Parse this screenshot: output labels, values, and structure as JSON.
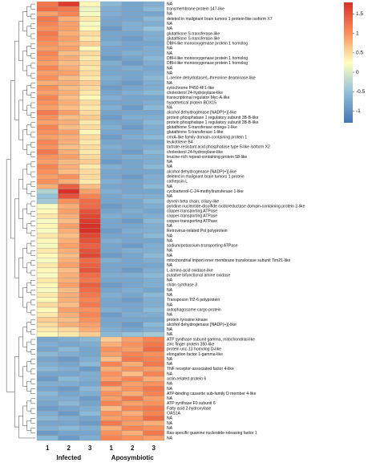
{
  "chart_data": {
    "type": "heatmap",
    "columns": [
      "1",
      "2",
      "3",
      "1",
      "2",
      "3"
    ],
    "column_groups": [
      {
        "label": "Infected",
        "columns": [
          0,
          1,
          2
        ]
      },
      {
        "label": "Aposymbiotic",
        "columns": [
          3,
          4,
          5
        ]
      }
    ],
    "rows": [
      "NA",
      "transmembrane protein 147-like",
      "NA",
      "deleted in malignant brain tumors 1 protein-like isoform X7",
      "NA",
      "NA",
      "glutathione S-transferase-like",
      "glutathione S-transferase-like",
      "DBH-like monooxygenase protein 1 homolog",
      "NA",
      "NA",
      "DBH-like monooxygenase protein 1 homolog",
      "DBH-like monooxygenase protein 1 homolog",
      "NA",
      "NA",
      "L-serine dehydratase/L-threonine deaminase-like",
      "NA",
      "cytochrome P450 4F1-like",
      "cholesterol 24-hydroxylase-like",
      "transcriptional regulator Myc-A-like",
      "hypothetical protein BOX15",
      "NA",
      "alcohol dehydrogenase [NADP(+)]-like",
      "protein phosphatase 1 regulatory subunit 3B-B-like",
      "protein phosphatase 1 regulatory subunit 3B-B-like",
      "glutathione S-transferase omega-1-like",
      "glutathione S-transferase 1-like",
      "cmrA-like family domain-containing protein 1",
      "leukotriene B4",
      "tartrate-resistant acid phosphatase type 5-like isoform X2",
      "cholesterol 24-hydroxylase-like",
      "leucine-rich repeat-containing protein 58-like",
      "NA",
      "NA",
      "alcohol dehydrogenase [NADP(+)]-like",
      "deleted in malignant brain tumors 1 protein",
      "cathepsin L",
      "NA",
      "cycloartenol-C-24-methyltransferase 1-like",
      "NA",
      "dynein beta chain, ciliary-like",
      "pyridine nucleotide-disulfide oxidoreductase domain-containing protein 2-like",
      "copper-transporting ATPase",
      "copper-transporting ATPase",
      "copper-transporting ATPase",
      "NA",
      "Retrovirus-related Pol polyprotein",
      "NA",
      "NA",
      "sodium/potassium-transporting ATPase",
      "NA",
      "NA",
      "mitochondrial import inner membrane translocase subunit Tim21-like",
      "NA",
      "L-amino-acid oxidase-like",
      "putative bifunctional amine oxidase",
      "NA",
      "chitin synthase 3",
      "NA",
      "NA",
      "Transposon Tf2-6 polyprotein",
      "NA",
      "autophagosome cargo protein",
      "NA",
      "protein tyrosine kinase",
      "alcohol dehydrogenase [NADP(+)]-like",
      "NA",
      "NA",
      "ATP synthase subunit gamma, mitochondrial-like",
      "zinc finger protein 350-like",
      "protein unc-13 homolog D-like",
      "elongation factor 1-gamma-like",
      "NA",
      "NA",
      "TNF receptor-associated factor 4-like",
      "NA",
      "actin-related protein 6",
      "NA",
      "NA",
      "ATP-binding cassette sub-family D member 4-like",
      "NA",
      "ATP synthase F0 subunit 6",
      "Fatty acid 2-hydroxylase",
      "OAS1A",
      "NA",
      "NA",
      "NA",
      "Ras-specific guanine nucleotide-releasing factor 1",
      "NA"
    ],
    "values": [
      [
        1.2,
        1.7,
        0.3,
        -0.6,
        -0.8,
        -0.7
      ],
      [
        1.3,
        1.2,
        0.1,
        -0.7,
        -0.8,
        -0.6
      ],
      [
        0.9,
        1.1,
        0.2,
        -0.7,
        -0.8,
        -0.8
      ],
      [
        1.2,
        0.8,
        0.4,
        -0.8,
        -0.8,
        -0.6
      ],
      [
        1.1,
        0.9,
        0.2,
        -0.8,
        -0.7,
        -0.7
      ],
      [
        1.0,
        0.9,
        0.3,
        -0.9,
        -0.7,
        -0.5
      ],
      [
        1.2,
        0.8,
        0.5,
        -0.8,
        -0.8,
        -0.7
      ],
      [
        1.1,
        0.9,
        0.4,
        -0.8,
        -0.9,
        -0.7
      ],
      [
        1.0,
        0.8,
        0.6,
        -0.7,
        -0.8,
        -0.8
      ],
      [
        0.9,
        0.9,
        0.3,
        -0.8,
        -0.8,
        -0.7
      ],
      [
        1.1,
        0.7,
        0.5,
        -0.8,
        -0.7,
        -0.7
      ],
      [
        1.0,
        0.8,
        0.4,
        -0.9,
        -0.8,
        -0.6
      ],
      [
        0.9,
        0.7,
        0.5,
        -0.7,
        -0.9,
        -0.7
      ],
      [
        1.1,
        0.8,
        0.4,
        -0.8,
        -0.7,
        -0.8
      ],
      [
        0.9,
        0.9,
        0.5,
        -0.8,
        -0.8,
        -0.7
      ],
      [
        1.0,
        0.7,
        0.4,
        -0.7,
        -0.8,
        -0.6
      ],
      [
        0.8,
        0.8,
        0.6,
        -0.8,
        -0.9,
        -0.7
      ],
      [
        1.0,
        0.7,
        0.5,
        -0.9,
        -0.8,
        -0.7
      ],
      [
        0.9,
        0.8,
        0.4,
        -0.8,
        -0.7,
        -0.6
      ],
      [
        1.1,
        0.7,
        0.3,
        -0.7,
        -0.8,
        -0.8
      ],
      [
        1.0,
        0.8,
        0.5,
        -0.8,
        -0.8,
        -0.7
      ],
      [
        0.9,
        0.7,
        0.4,
        -0.7,
        -0.9,
        -0.6
      ],
      [
        1.2,
        0.9,
        0.5,
        -0.8,
        -0.8,
        -0.8
      ],
      [
        1.0,
        0.7,
        0.6,
        -0.9,
        -0.7,
        -0.7
      ],
      [
        0.9,
        0.8,
        0.4,
        -0.8,
        -0.8,
        -0.6
      ],
      [
        1.1,
        0.7,
        0.5,
        -0.7,
        -0.9,
        -0.7
      ],
      [
        1.0,
        0.9,
        0.3,
        -0.8,
        -0.8,
        -0.7
      ],
      [
        0.9,
        0.8,
        0.5,
        -0.9,
        -0.7,
        -0.6
      ],
      [
        1.1,
        0.8,
        0.4,
        -0.8,
        -0.8,
        -0.8
      ],
      [
        1.0,
        0.7,
        0.5,
        -0.7,
        -0.8,
        -0.7
      ],
      [
        1.2,
        0.8,
        0.4,
        -0.8,
        -0.9,
        -0.6
      ],
      [
        1.0,
        0.9,
        0.5,
        -0.8,
        -0.7,
        -0.7
      ],
      [
        0.9,
        0.7,
        0.6,
        -0.9,
        -0.8,
        -0.7
      ],
      [
        1.1,
        0.8,
        0.4,
        -0.7,
        -0.8,
        -0.6
      ],
      [
        1.0,
        0.7,
        0.5,
        -0.8,
        -0.8,
        -0.8
      ],
      [
        0.9,
        1.0,
        0.5,
        -0.8,
        -0.9,
        -0.7
      ],
      [
        1.0,
        0.8,
        0.4,
        -0.7,
        -0.8,
        -0.7
      ],
      [
        0.8,
        1.4,
        0.7,
        -0.8,
        -0.8,
        -0.6
      ],
      [
        -0.3,
        1.8,
        0.9,
        -0.7,
        -0.8,
        -0.8
      ],
      [
        -0.5,
        1.5,
        1.1,
        -0.8,
        -0.7,
        -0.7
      ],
      [
        -0.4,
        1.0,
        1.3,
        -0.8,
        -0.8,
        -0.6
      ],
      [
        0.2,
        0.8,
        1.3,
        -0.9,
        -0.8,
        -0.7
      ],
      [
        0.3,
        0.9,
        1.5,
        -0.8,
        -0.7,
        -0.8
      ],
      [
        0.4,
        0.8,
        1.6,
        -0.7,
        -0.8,
        -0.7
      ],
      [
        0.2,
        0.7,
        1.7,
        -0.8,
        -0.9,
        -0.6
      ],
      [
        0.3,
        0.9,
        1.8,
        -0.8,
        -0.8,
        -0.7
      ],
      [
        0.2,
        0.8,
        1.9,
        -0.9,
        -0.7,
        -0.7
      ],
      [
        0.4,
        0.7,
        1.6,
        -0.8,
        -0.8,
        -0.6
      ],
      [
        0.3,
        0.8,
        1.5,
        -0.7,
        -0.8,
        -0.8
      ],
      [
        0.2,
        0.9,
        1.4,
        -0.8,
        -0.9,
        -0.7
      ],
      [
        0.4,
        0.8,
        1.5,
        -0.8,
        -0.7,
        -0.7
      ],
      [
        0.3,
        0.7,
        1.6,
        -0.9,
        -0.8,
        -0.6
      ],
      [
        0.2,
        0.8,
        1.3,
        -0.7,
        -0.8,
        -0.7
      ],
      [
        0.4,
        0.9,
        1.4,
        -0.8,
        -0.8,
        -0.8
      ],
      [
        0.3,
        0.7,
        1.5,
        -0.8,
        -0.9,
        -0.7
      ],
      [
        0.2,
        0.8,
        1.3,
        -0.7,
        -0.7,
        -0.6
      ],
      [
        0.4,
        0.8,
        1.2,
        -0.8,
        -0.8,
        -0.7
      ],
      [
        0.3,
        0.9,
        1.4,
        -0.9,
        -0.8,
        -0.7
      ],
      [
        0.2,
        0.7,
        1.3,
        -0.8,
        -0.7,
        -0.8
      ],
      [
        0.4,
        0.8,
        1.2,
        -0.7,
        -0.8,
        -0.6
      ],
      [
        0.3,
        0.8,
        1.1,
        -0.8,
        -0.9,
        -0.7
      ],
      [
        0.5,
        0.7,
        1.2,
        -0.8,
        -0.8,
        -0.7
      ],
      [
        0.3,
        0.9,
        1.0,
        -0.7,
        -0.8,
        -0.6
      ],
      [
        0.4,
        0.8,
        1.1,
        -0.9,
        -0.7,
        -0.7
      ],
      [
        0.6,
        0.7,
        1.0,
        -0.8,
        -0.8,
        -0.8
      ],
      [
        0.5,
        0.8,
        0.9,
        -0.8,
        -0.9,
        -0.6
      ],
      [
        0.4,
        0.5,
        0.8,
        -0.7,
        -0.8,
        -0.7
      ],
      [
        0.3,
        0.4,
        0.6,
        -0.6,
        -0.5,
        -0.4
      ],
      [
        -0.8,
        -0.7,
        -0.6,
        0.6,
        0.9,
        1.1
      ],
      [
        -0.7,
        -0.8,
        -0.7,
        0.8,
        1.0,
        1.2
      ],
      [
        -0.8,
        -0.6,
        -0.8,
        1.0,
        0.9,
        1.3
      ],
      [
        -0.6,
        -0.7,
        -0.8,
        0.9,
        1.1,
        1.0
      ],
      [
        -0.8,
        -0.9,
        -0.7,
        0.7,
        1.2,
        1.1
      ],
      [
        -0.7,
        -0.8,
        -0.6,
        1.1,
        0.8,
        1.2
      ],
      [
        -0.6,
        -0.7,
        -0.9,
        0.8,
        1.0,
        0.9
      ],
      [
        -0.8,
        -0.8,
        -0.7,
        1.0,
        0.7,
        1.1
      ],
      [
        -0.9,
        -0.6,
        -0.7,
        0.9,
        1.1,
        0.8
      ],
      [
        -0.7,
        -0.7,
        -0.8,
        1.2,
        0.9,
        1.0
      ],
      [
        -0.8,
        -0.9,
        -0.6,
        0.8,
        1.0,
        1.2
      ],
      [
        -0.6,
        -0.8,
        -0.7,
        1.0,
        0.8,
        1.1
      ],
      [
        -0.7,
        -0.7,
        -0.9,
        0.9,
        1.2,
        0.9
      ],
      [
        -0.8,
        -0.6,
        -0.8,
        1.1,
        0.9,
        1.0
      ],
      [
        -0.9,
        -0.8,
        -0.7,
        0.7,
        1.1,
        1.2
      ],
      [
        -0.7,
        -0.9,
        -0.6,
        1.0,
        0.8,
        1.1
      ],
      [
        -0.6,
        -0.7,
        -0.8,
        0.9,
        1.0,
        1.3
      ],
      [
        -0.8,
        -0.8,
        -0.9,
        1.2,
        0.9,
        0.8
      ],
      [
        -0.7,
        -0.6,
        -0.7,
        0.8,
        1.1,
        1.0
      ],
      [
        -0.9,
        -0.8,
        -0.8,
        1.0,
        0.8,
        1.2
      ],
      [
        -0.6,
        -0.9,
        -0.7,
        1.1,
        1.0,
        0.9
      ]
    ],
    "legend_ticks": [
      1.5,
      1,
      0.5,
      0,
      -0.5,
      -1
    ],
    "value_range": [
      -1.3,
      1.8
    ],
    "colors": {
      "low": "#4575b4",
      "mid_low": "#91bfdb",
      "mid": "#ffffbf",
      "mid_high": "#fc8d59",
      "high": "#d73027",
      "cell_border": "#9a9a9a"
    },
    "dendrogram_merges": [
      [
        0,
        1
      ],
      [
        2,
        3
      ],
      [
        4,
        5
      ],
      [
        6,
        7
      ],
      [
        8,
        9
      ],
      [
        10,
        11
      ],
      [
        12,
        13
      ],
      [
        14,
        15
      ],
      [
        16,
        17
      ],
      [
        18,
        19
      ],
      [
        20,
        21
      ],
      [
        22,
        23
      ],
      [
        24,
        25
      ],
      [
        26,
        27
      ],
      [
        28,
        29
      ],
      [
        30,
        31
      ],
      [
        32,
        33
      ],
      [
        34,
        35
      ],
      [
        36,
        37
      ],
      [
        38,
        39
      ],
      [
        40,
        41
      ],
      [
        42,
        43
      ],
      [
        44,
        45
      ],
      [
        46,
        47
      ],
      [
        48,
        49
      ],
      [
        50,
        51
      ],
      [
        52,
        53
      ],
      [
        54,
        55
      ],
      [
        56,
        57
      ],
      [
        58,
        59
      ],
      [
        60,
        61
      ],
      [
        62,
        63
      ],
      [
        64,
        65
      ],
      [
        66,
        67
      ],
      [
        68,
        69
      ],
      [
        70,
        71
      ],
      [
        72,
        73
      ],
      [
        74,
        75
      ],
      [
        76,
        77
      ],
      [
        78,
        79
      ],
      [
        80,
        81
      ],
      [
        82,
        83
      ],
      [
        84,
        85
      ],
      [
        86,
        87
      ],
      [
        88
      ]
    ]
  }
}
